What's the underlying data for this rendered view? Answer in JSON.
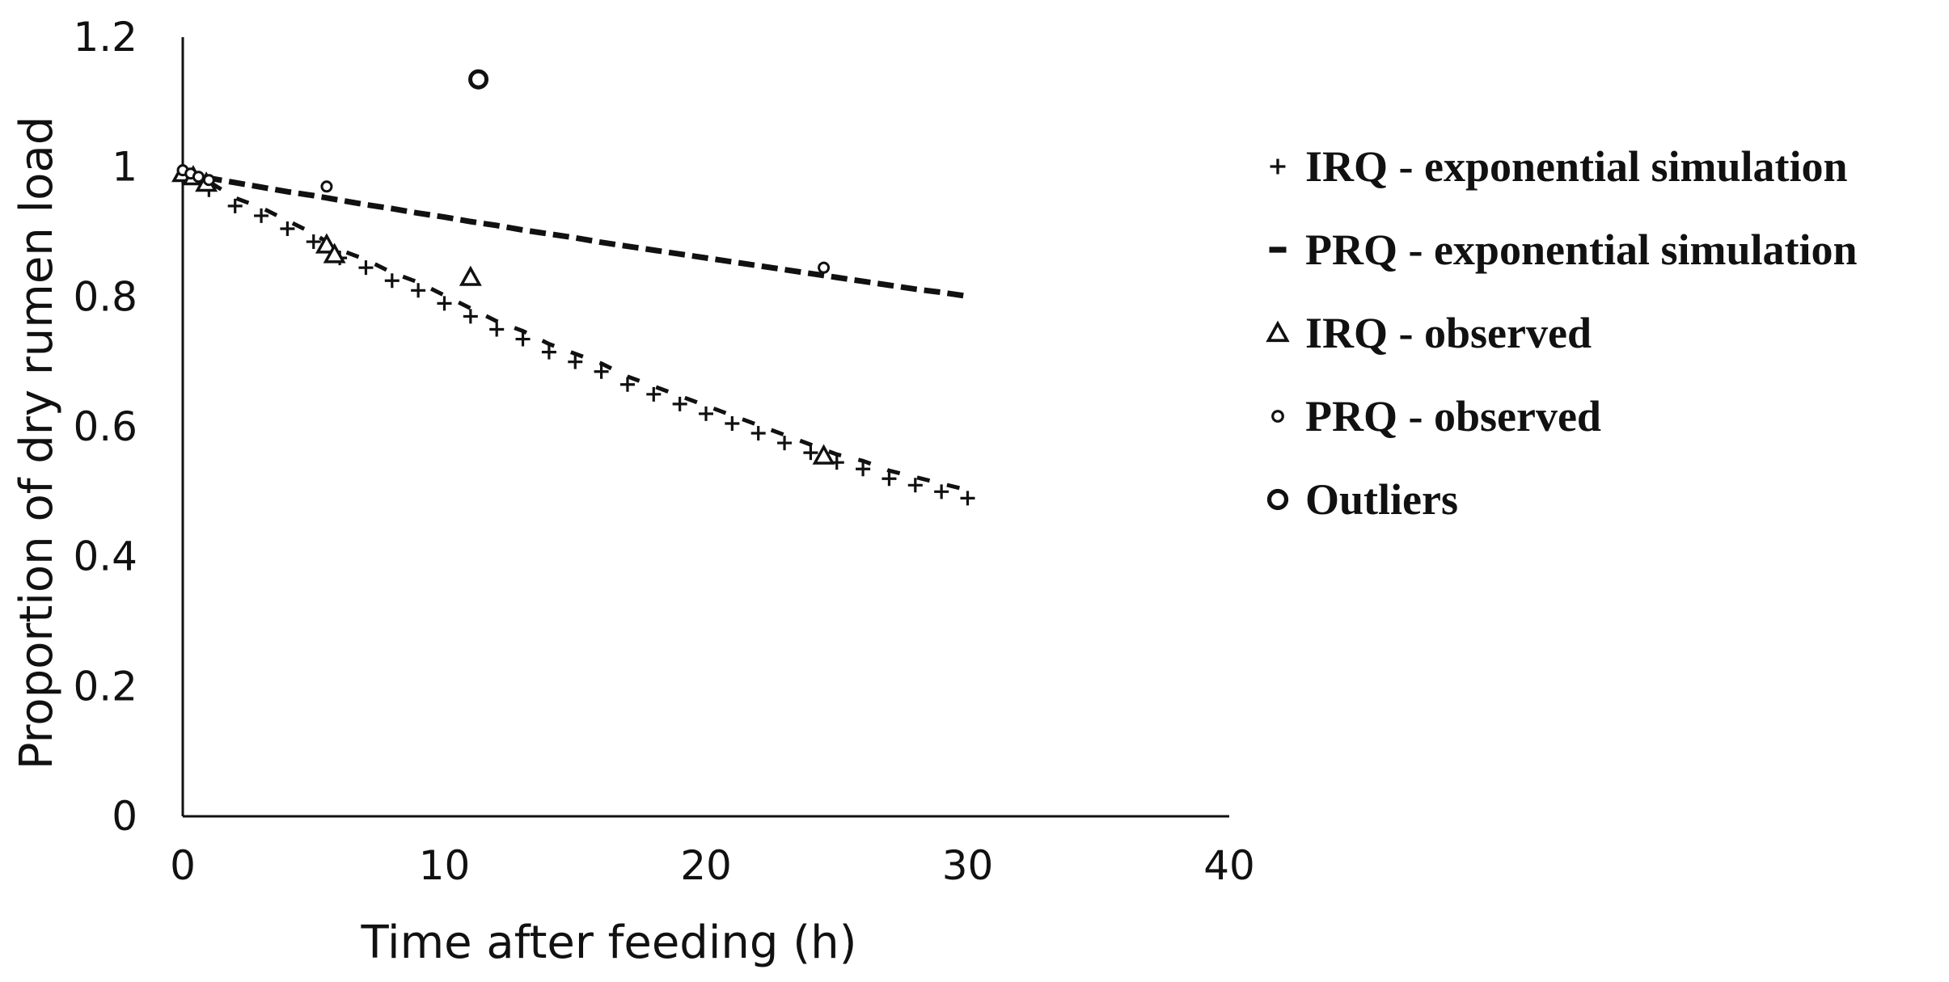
{
  "chart_data": {
    "type": "scatter",
    "title": "",
    "xlabel": "Time after feeding (h)",
    "ylabel": "Proportion of dry rumen load",
    "xlim": [
      0,
      40
    ],
    "ylim": [
      0,
      1.2
    ],
    "x_ticks": [
      0,
      10,
      20,
      30,
      40
    ],
    "y_ticks": [
      0,
      0.2,
      0.4,
      0.6,
      0.8,
      1,
      1.2
    ],
    "x_tick_labels": [
      "0",
      "10",
      "20",
      "30",
      "40"
    ],
    "y_tick_labels": [
      "0",
      "0.2",
      "0.4",
      "0.6",
      "0.8",
      "1",
      "1.2"
    ],
    "grid": false,
    "legend_position": "right",
    "series": [
      {
        "name": "IRQ - exponential simulation",
        "marker": "plus",
        "x": [
          0,
          1,
          2,
          3,
          4,
          5,
          6,
          7,
          8,
          9,
          10,
          11,
          12,
          13,
          14,
          15,
          16,
          17,
          18,
          19,
          20,
          21,
          22,
          23,
          24,
          25,
          26,
          27,
          28,
          29,
          30
        ],
        "y": [
          0.985,
          0.965,
          0.94,
          0.925,
          0.905,
          0.885,
          0.86,
          0.845,
          0.825,
          0.81,
          0.79,
          0.77,
          0.75,
          0.735,
          0.715,
          0.7,
          0.685,
          0.665,
          0.65,
          0.635,
          0.62,
          0.605,
          0.59,
          0.575,
          0.56,
          0.545,
          0.535,
          0.52,
          0.51,
          0.5,
          0.49
        ]
      },
      {
        "name": "PRQ - exponential simulation",
        "marker": "dash",
        "x": [
          0,
          1,
          2,
          3,
          4,
          5,
          6,
          7,
          8,
          9,
          10,
          11,
          12,
          13,
          14,
          15,
          16,
          17,
          18,
          19,
          20,
          21,
          22,
          23,
          24,
          25,
          26,
          27,
          28,
          29,
          30
        ],
        "y": [
          0.99,
          0.983,
          0.976,
          0.969,
          0.962,
          0.956,
          0.949,
          0.942,
          0.936,
          0.929,
          0.923,
          0.916,
          0.91,
          0.903,
          0.897,
          0.891,
          0.884,
          0.878,
          0.872,
          0.866,
          0.86,
          0.854,
          0.848,
          0.842,
          0.836,
          0.83,
          0.824,
          0.818,
          0.812,
          0.807,
          0.801
        ]
      },
      {
        "name": "IRQ - observed",
        "marker": "triangle",
        "x": [
          0,
          0.4,
          0.9,
          5.5,
          5.8,
          11,
          24.5
        ],
        "y": [
          0.99,
          0.985,
          0.975,
          0.88,
          0.865,
          0.83,
          0.555
        ]
      },
      {
        "name": "PRQ - observed",
        "marker": "small-circle",
        "x": [
          0,
          0.3,
          0.6,
          1,
          5.5,
          24.5
        ],
        "y": [
          0.995,
          0.99,
          0.985,
          0.98,
          0.97,
          0.845
        ]
      },
      {
        "name": "Outliers",
        "marker": "ring",
        "x": [
          11.3
        ],
        "y": [
          1.135
        ]
      }
    ]
  }
}
